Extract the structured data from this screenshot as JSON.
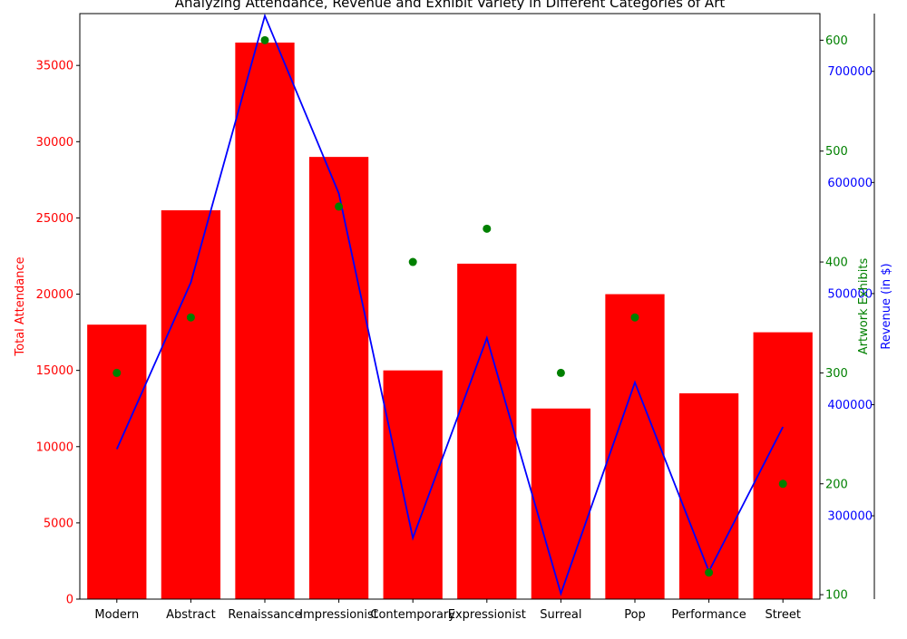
{
  "chart_data": {
    "type": "bar",
    "title": "Analyzing Attendance, Revenue and Exhibit Variety in Different Categories of Art",
    "categories": [
      "Modern",
      "Abstract",
      "Renaissance",
      "Impressionist",
      "Contemporary",
      "Expressionist",
      "Surreal",
      "Pop",
      "Performance",
      "Street"
    ],
    "series": [
      {
        "name": "Total Attendance",
        "type": "bar",
        "axis": "left",
        "color": "#ff0000",
        "values": [
          18000,
          25500,
          36500,
          29000,
          15000,
          22000,
          12500,
          20000,
          13500,
          17500
        ]
      },
      {
        "name": "Revenue (in $)",
        "type": "line",
        "axis": "right-outer",
        "color": "#0000ff",
        "values": [
          360000,
          510000,
          750000,
          590000,
          280000,
          460000,
          230000,
          420000,
          250000,
          380000
        ]
      },
      {
        "name": "Artwork Exhibits",
        "type": "scatter",
        "axis": "right-inner",
        "color": "#008000",
        "values": [
          300,
          350,
          600,
          450,
          400,
          430,
          300,
          350,
          120,
          200
        ]
      }
    ],
    "axes": {
      "left": {
        "label": "Total Attendance",
        "color": "#ff0000",
        "ylim": [
          0,
          38400
        ],
        "ticks": [
          0,
          5000,
          10000,
          15000,
          20000,
          25000,
          30000,
          35000
        ]
      },
      "right_inner": {
        "label": "Artwork Exhibits",
        "color": "#008000",
        "ylim": [
          96,
          624
        ],
        "ticks": [
          100,
          200,
          300,
          400,
          500,
          600
        ]
      },
      "right_outer": {
        "label": "Revenue (in $)",
        "color": "#0000ff",
        "ylim": [
          225000,
          752000
        ],
        "ticks": [
          300000,
          400000,
          500000,
          600000,
          700000
        ]
      }
    },
    "grid": false,
    "legend": "none"
  }
}
